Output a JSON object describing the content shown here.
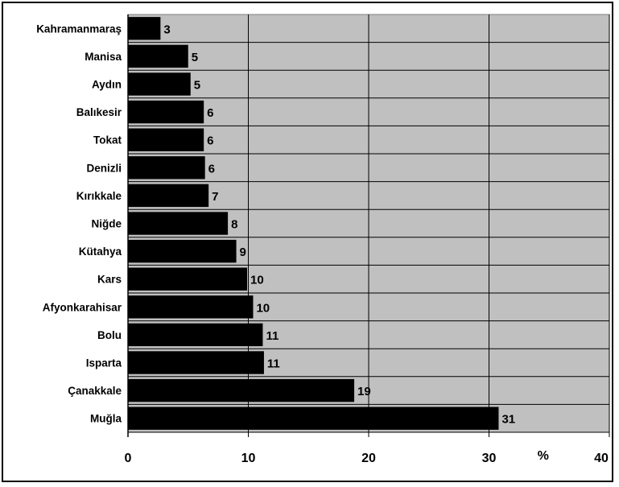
{
  "chart_data": {
    "type": "bar",
    "orientation": "horizontal",
    "categories": [
      "Kahramanmaraş",
      "Manisa",
      "Aydın",
      "Balıkesir",
      "Tokat",
      "Denizli",
      "Kırıkkale",
      "Niğde",
      "Kütahya",
      "Kars",
      "Afyonkarahisar",
      "Bolu",
      "Isparta",
      "Çanakkale",
      "Muğla"
    ],
    "values": [
      3,
      5,
      5,
      6,
      6,
      6,
      7,
      8,
      9,
      10,
      10,
      11,
      11,
      19,
      31
    ],
    "value_labels": [
      "3",
      "5",
      "5",
      "6",
      "6",
      "6",
      "7",
      "8",
      "9",
      "10",
      "10",
      "11",
      "11",
      "19",
      "31"
    ],
    "bar_lengths": [
      2.7,
      5.0,
      5.2,
      6.3,
      6.3,
      6.4,
      6.7,
      8.3,
      9.0,
      9.9,
      10.4,
      11.2,
      11.3,
      18.8,
      30.8
    ],
    "xlim": [
      0,
      40
    ],
    "xticks": [
      0,
      10,
      20,
      30,
      40
    ],
    "xlabel": "%",
    "grid": true,
    "plot_background": "#c0c0c0",
    "bar_color": "#000000"
  }
}
